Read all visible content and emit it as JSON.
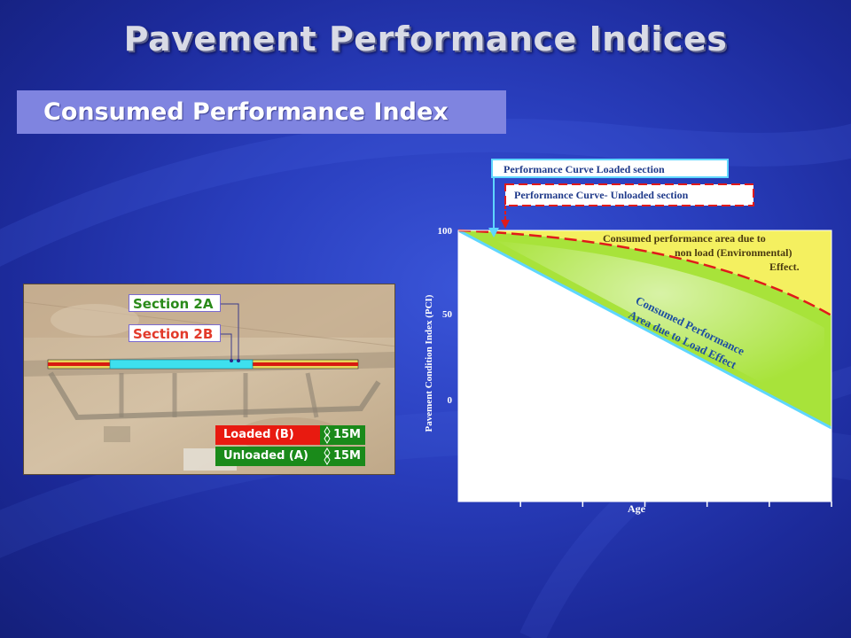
{
  "slide": {
    "title": "Pavement Performance Indices",
    "subtitle": "Consumed Performance Index"
  },
  "aerial_image": {
    "section_labels": [
      "Section 2A",
      "Section 2B"
    ],
    "legend": [
      {
        "name": "Loaded (B)",
        "value": "15M",
        "color": "#e81a10"
      },
      {
        "name": "Unloaded (A)",
        "value": "15M",
        "color": "#1a8a1a"
      }
    ]
  },
  "chart_data": {
    "type": "area",
    "title": "",
    "xlabel": "Age",
    "ylabel": "Pavement Condition Index (PCI)",
    "yticks": [
      "100",
      "50",
      "0"
    ],
    "x_tick_count": 6,
    "series": [
      {
        "name": "Performance Curve Loaded section",
        "style": "solid",
        "color": "#5fd6ff"
      },
      {
        "name": "Performance Curve- Unloaded section",
        "style": "dashed",
        "color": "#e01a1a"
      }
    ],
    "regions": [
      {
        "label": "Consumed performance area due to non load (Environmental) Effect.",
        "color": "#f4f060"
      },
      {
        "label": "Consumed Performance Area due to Load Effect",
        "color": "#a8e33a"
      }
    ]
  }
}
